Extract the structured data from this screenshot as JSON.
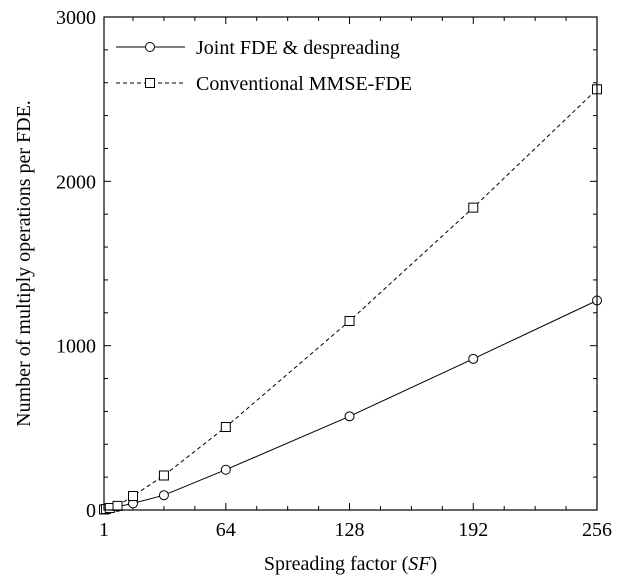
{
  "chart_data": {
    "type": "line",
    "xlabel_main": "Spreading factor (",
    "xlabel_italic": "SF",
    "xlabel_tail": ")",
    "ylabel": "Number of multiply operations per FDE.",
    "xlim": [
      1,
      256
    ],
    "ylim": [
      0,
      3000
    ],
    "xticks": [
      1,
      64,
      128,
      192,
      256
    ],
    "yticks": [
      0,
      1000,
      2000,
      3000
    ],
    "x_minor_step": 16,
    "y_minor_step": 200,
    "grid": false,
    "legend_position": "top-left",
    "series": [
      {
        "name": "Joint FDE & despreading",
        "marker": "circle",
        "line": "solid",
        "x": [
          1,
          2,
          4,
          8,
          16,
          32,
          64,
          128,
          192,
          256
        ],
        "y": [
          3,
          5,
          10,
          20,
          40,
          90,
          245,
          570,
          920,
          1275
        ]
      },
      {
        "name": "Conventional MMSE-FDE",
        "marker": "square",
        "line": "dashed",
        "x": [
          1,
          2,
          4,
          8,
          16,
          32,
          64,
          128,
          192,
          256
        ],
        "y": [
          3,
          6,
          12,
          25,
          85,
          210,
          505,
          1150,
          1840,
          2560
        ]
      }
    ]
  }
}
